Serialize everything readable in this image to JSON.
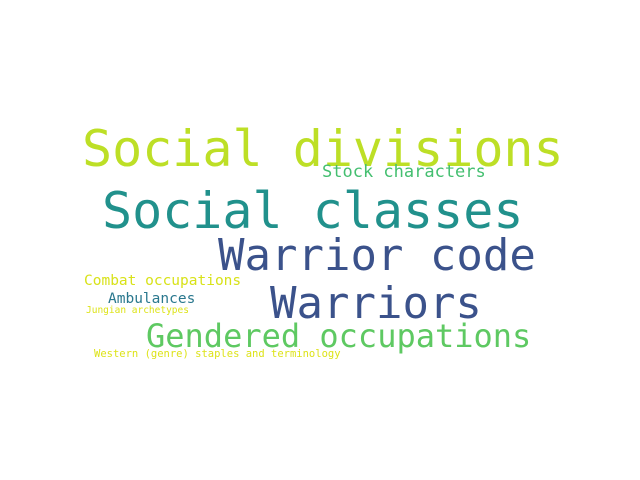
{
  "words": [
    {
      "id": "social-divisions",
      "text": "Social divisions",
      "color": "#bddf26"
    },
    {
      "id": "stock-characters",
      "text": "Stock characters",
      "color": "#44bf70"
    },
    {
      "id": "social-classes",
      "text": "Social classes",
      "color": "#21918c"
    },
    {
      "id": "warrior-code",
      "text": "Warrior code",
      "color": "#3b528b"
    },
    {
      "id": "combat-occupations",
      "text": "Combat occupations",
      "color": "#d8e219"
    },
    {
      "id": "warriors",
      "text": "Warriors",
      "color": "#3b528b"
    },
    {
      "id": "ambulances",
      "text": "Ambulances",
      "color": "#2a788e"
    },
    {
      "id": "jungian-archetypes",
      "text": "Jungian archetypes",
      "color": "#dde318"
    },
    {
      "id": "gendered-occupations",
      "text": "Gendered occupations",
      "color": "#5ec962"
    },
    {
      "id": "western",
      "text": "Western (genre) staples and terminology",
      "color": "#dde318"
    }
  ]
}
